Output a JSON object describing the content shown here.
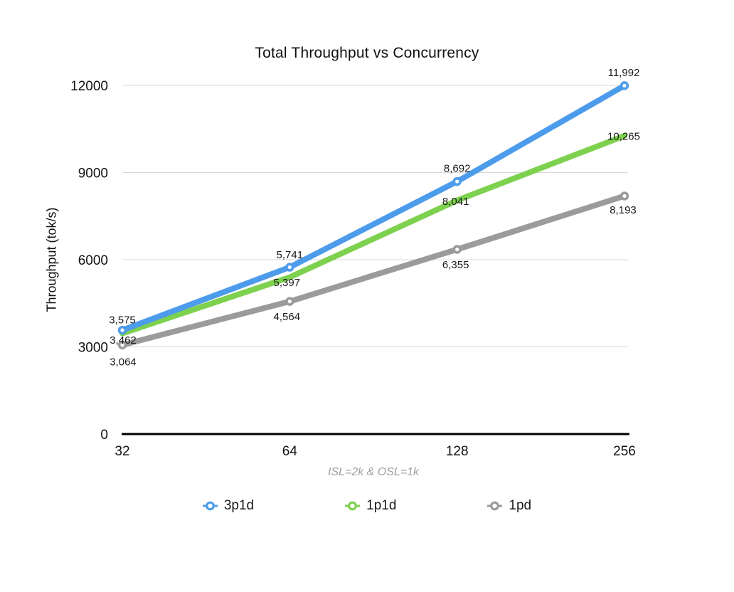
{
  "chart_data": {
    "type": "line",
    "title": "Total Throughput vs Concurrency",
    "ylabel": "Throughput (tok/s)",
    "xlabel": "ISL=2k & OSL=1k",
    "categories": [
      "32",
      "64",
      "128",
      "256"
    ],
    "yticks": [
      0,
      3000,
      6000,
      9000,
      12000
    ],
    "ylim": [
      0,
      12000
    ],
    "grid": "horizontal",
    "legend_position": "bottom",
    "series": [
      {
        "name": "3p1d",
        "color": "#4D9CEC",
        "values": [
          3575,
          5741,
          8692,
          11992
        ],
        "markers": true,
        "label_offsets": [
          [
            0,
            -15
          ],
          [
            0,
            -18
          ],
          [
            0,
            -19
          ],
          [
            -1,
            -19
          ]
        ]
      },
      {
        "name": "1p1d",
        "color": "#7DD14E",
        "values": [
          3462,
          5397,
          8041,
          10265
        ],
        "markers": false,
        "label_offsets": [
          [
            1,
            9
          ],
          [
            -4,
            7
          ],
          [
            -2,
            1
          ],
          [
            -1,
            0
          ]
        ]
      },
      {
        "name": "1pd",
        "color": "#9B9B9B",
        "values": [
          3064,
          4564,
          6355,
          8193
        ],
        "markers": true,
        "label_offsets": [
          [
            1,
            23
          ],
          [
            -4,
            21
          ],
          [
            -2,
            21
          ],
          [
            -2,
            19
          ]
        ]
      }
    ],
    "colors": {
      "grid": "#D8D8D8",
      "axis": "#000000",
      "tick_label": "#111111",
      "data_label": "#1A1A1A",
      "caption": "#9F9F9F"
    }
  }
}
